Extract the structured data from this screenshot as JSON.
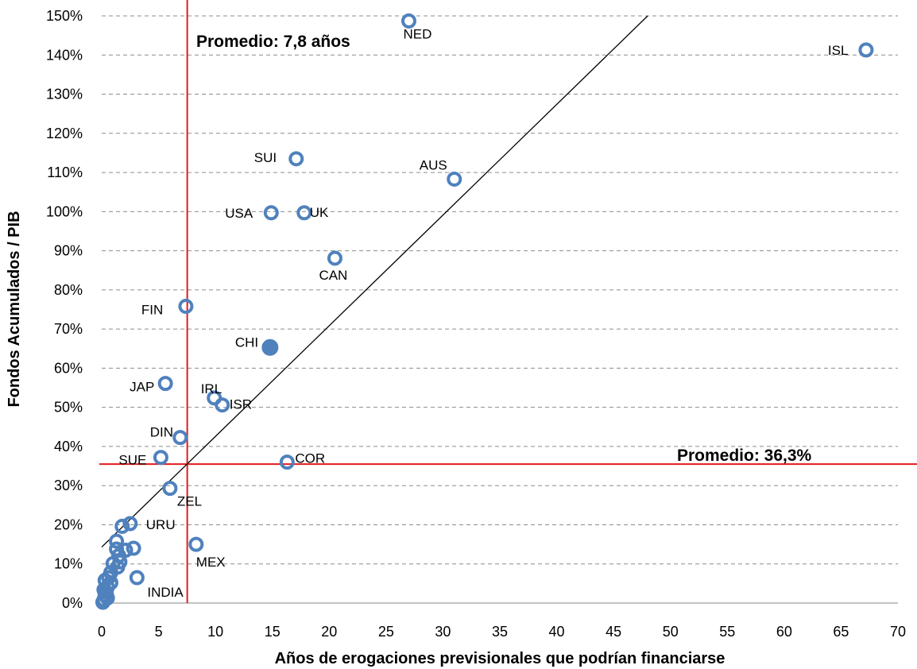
{
  "chart_data": {
    "type": "scatter",
    "title": "",
    "xlabel": "Años de erogaciones previsionales que podrían financiarse",
    "ylabel": "Fondos Acumulados / PIB",
    "xlim": [
      0,
      70
    ],
    "ylim": [
      0,
      150
    ],
    "x_ticks": [
      "0",
      "5",
      "10",
      "15",
      "20",
      "25",
      "30",
      "35",
      "40",
      "45",
      "50",
      "55",
      "60",
      "65",
      "70"
    ],
    "y_ticks": [
      "0%",
      "10%",
      "20%",
      "30%",
      "40%",
      "50%",
      "60%",
      "70%",
      "80%",
      "90%",
      "100%",
      "110%",
      "120%",
      "130%",
      "140%",
      "150%"
    ],
    "grid": "horizontal-dashed",
    "colors": {
      "marker": "#4F81BD",
      "reference": "#E31A1C",
      "trend": "#000000"
    },
    "labeled_points": [
      {
        "label": "NED",
        "x": 27.0,
        "y": 148.7,
        "filled": false
      },
      {
        "label": "ISL",
        "x": 67.2,
        "y": 141.3,
        "filled": false
      },
      {
        "label": "SUI",
        "x": 17.1,
        "y": 113.5,
        "filled": false
      },
      {
        "label": "AUS",
        "x": 31.0,
        "y": 108.3,
        "filled": false
      },
      {
        "label": "USA",
        "x": 14.9,
        "y": 99.7,
        "filled": false
      },
      {
        "label": "UK",
        "x": 17.8,
        "y": 99.7,
        "filled": false
      },
      {
        "label": "CAN",
        "x": 20.5,
        "y": 88.1,
        "filled": false
      },
      {
        "label": "FIN",
        "x": 7.4,
        "y": 75.8,
        "filled": false
      },
      {
        "label": "CHI",
        "x": 14.8,
        "y": 65.3,
        "filled": true
      },
      {
        "label": "JAP",
        "x": 5.6,
        "y": 56.1,
        "filled": false
      },
      {
        "label": "IRL",
        "x": 9.9,
        "y": 52.4,
        "filled": false
      },
      {
        "label": "ISR",
        "x": 10.6,
        "y": 50.6,
        "filled": false
      },
      {
        "label": "DIN",
        "x": 6.9,
        "y": 42.3,
        "filled": false
      },
      {
        "label": "SUE",
        "x": 5.2,
        "y": 37.2,
        "filled": false
      },
      {
        "label": "COR",
        "x": 16.3,
        "y": 36.0,
        "filled": false
      },
      {
        "label": "ZEL",
        "x": 6.0,
        "y": 29.3,
        "filled": false
      },
      {
        "label": "URU",
        "x": 2.5,
        "y": 20.3,
        "filled": false
      },
      {
        "label": "MEX",
        "x": 8.3,
        "y": 15.0,
        "filled": false
      },
      {
        "label": "INDIA",
        "x": 3.1,
        "y": 6.5,
        "filled": false
      }
    ],
    "unlabeled_points": [
      {
        "x": 1.8,
        "y": 19.6
      },
      {
        "x": 1.3,
        "y": 15.8
      },
      {
        "x": 2.8,
        "y": 14.0
      },
      {
        "x": 1.3,
        "y": 13.8
      },
      {
        "x": 2.1,
        "y": 13.5
      },
      {
        "x": 1.5,
        "y": 12.1
      },
      {
        "x": 1.6,
        "y": 10.5
      },
      {
        "x": 1.0,
        "y": 10.1
      },
      {
        "x": 1.4,
        "y": 9.2
      },
      {
        "x": 0.8,
        "y": 7.8
      },
      {
        "x": 0.6,
        "y": 6.5
      },
      {
        "x": 0.3,
        "y": 5.8
      },
      {
        "x": 0.8,
        "y": 5.2
      },
      {
        "x": 0.5,
        "y": 4.1
      },
      {
        "x": 0.2,
        "y": 3.4
      },
      {
        "x": 0.4,
        "y": 2.8
      },
      {
        "x": 0.3,
        "y": 2.0
      },
      {
        "x": 0.5,
        "y": 1.3
      },
      {
        "x": 0.2,
        "y": 0.8
      },
      {
        "x": 0.1,
        "y": 0.2
      }
    ],
    "reference_lines": [
      {
        "orientation": "vertical",
        "value": 7.8,
        "label": "Promedio: 7,8 años"
      },
      {
        "orientation": "horizontal",
        "value": 36.3,
        "label": "Promedio: 36,3%"
      }
    ],
    "trendline": {
      "x1": 0,
      "y1": 14.3,
      "x2": 48.0,
      "y2": 150
    }
  }
}
